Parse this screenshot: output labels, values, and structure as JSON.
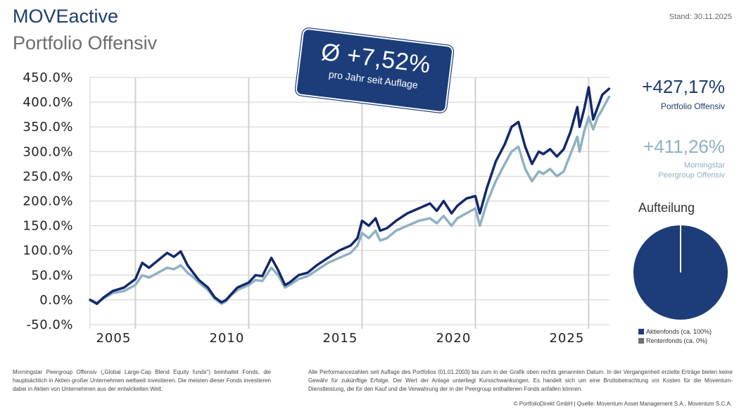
{
  "header": {
    "title": "MOVEactive",
    "subtitle": "Portfolio Offensiv",
    "stand": "Stand: 30.11.2025"
  },
  "badge": {
    "value": "Ø +7,52%",
    "caption": "pro Jahr seit Auflage"
  },
  "performance": {
    "portfolio_value": "+427,17%",
    "portfolio_label": "Portfolio Offensiv",
    "peer_value": "+411,26%",
    "peer_label_line1": "Morningstar",
    "peer_label_line2": "Peergroup Offensiv"
  },
  "allocation": {
    "title": "Aufteilung",
    "items": [
      {
        "label": "Aktienfonds (ca. 100%)",
        "value": 100,
        "color": "#1c3d7a"
      },
      {
        "label": "Rentenfonds (ca. 0%)",
        "value": 0,
        "color": "#707070"
      }
    ]
  },
  "footer": {
    "left": "Morningstar Peergroup Offensiv („Global Large-Cap Blend Equity funds\") beinhaltet Fonds, die hauptsächlich in Aktien großer Unternehmen weltweit investieren. Die meisten dieser Fonds investieren dabei in Aktien von Unternehmen aus der entwickelten Welt.",
    "right": "Alle Performancezahlen seit Auflage des Portfolios (01.01.2003) bis zum in der Grafik oben rechts genannten Datum. In der Vergangenheit erzielte Erträge bieten keine Gewähr für zukünftige Erfolge. Der Wert der Anlage unterliegt Kursschwankungen. Es handelt sich um eine Bruttobetrachtung vor Kosten für die Moventum-Dienstleistung, die für den Kauf und die Verwahrung der in der Peergroup enthaltenen Fonds anfallen können.",
    "copyright": "© PortfolioDirekt GmbH | Quelle: Moventum Asset Management S.A., Moventum S.C.A."
  },
  "colors": {
    "portfolio": "#13286b",
    "peer": "#8fb1c3",
    "grid": "#d0d0d0"
  },
  "chart_data": {
    "type": "line",
    "title": "",
    "xlabel": "",
    "ylabel": "",
    "ylim": [
      -50,
      450
    ],
    "xlim": [
      2003.0,
      2025.92
    ],
    "y_ticks": [
      -50,
      0,
      50,
      100,
      150,
      200,
      250,
      300,
      350,
      400,
      450
    ],
    "y_tick_labels": [
      "-50.0%",
      "0.0%",
      "50.0%",
      "100.0%",
      "150.0%",
      "200.0%",
      "250.0%",
      "300.0%",
      "350.0%",
      "400.0%",
      "450.0%"
    ],
    "x_ticks": [
      2005,
      2010,
      2015,
      2020,
      2025
    ],
    "x_tick_labels": [
      "2005",
      "2010",
      "2015",
      "2020",
      "2025"
    ],
    "series": [
      {
        "name": "Portfolio Offensiv",
        "x": [
          2003.0,
          2003.3,
          2003.6,
          2004.0,
          2004.5,
          2005.0,
          2005.3,
          2005.6,
          2006.0,
          2006.4,
          2006.7,
          2007.0,
          2007.3,
          2007.5,
          2007.8,
          2008.2,
          2008.5,
          2008.8,
          2009.0,
          2009.2,
          2009.5,
          2010.0,
          2010.3,
          2010.6,
          2011.0,
          2011.3,
          2011.6,
          2011.8,
          2012.2,
          2012.6,
          2013.0,
          2013.5,
          2014.0,
          2014.5,
          2014.8,
          2015.0,
          2015.3,
          2015.6,
          2015.8,
          2016.1,
          2016.5,
          2017.0,
          2017.5,
          2018.0,
          2018.3,
          2018.6,
          2018.95,
          2019.2,
          2019.6,
          2020.0,
          2020.2,
          2020.5,
          2020.9,
          2021.3,
          2021.6,
          2021.9,
          2022.2,
          2022.5,
          2022.8,
          2023.0,
          2023.3,
          2023.6,
          2023.9,
          2024.2,
          2024.5,
          2024.6,
          2024.8,
          2025.0,
          2025.2,
          2025.4,
          2025.6,
          2025.9
        ],
        "values": [
          0,
          -8,
          5,
          18,
          25,
          42,
          75,
          65,
          80,
          95,
          87,
          98,
          70,
          58,
          40,
          25,
          5,
          -5,
          0,
          10,
          25,
          35,
          50,
          48,
          85,
          60,
          30,
          35,
          50,
          55,
          70,
          85,
          100,
          110,
          125,
          160,
          150,
          165,
          140,
          145,
          160,
          175,
          185,
          195,
          180,
          200,
          175,
          190,
          205,
          210,
          175,
          225,
          280,
          315,
          350,
          360,
          310,
          275,
          300,
          295,
          305,
          290,
          305,
          340,
          390,
          350,
          385,
          430,
          365,
          390,
          415,
          427
        ]
      },
      {
        "name": "Morningstar Peergroup Offensiv",
        "x": [
          2003.0,
          2003.3,
          2003.6,
          2004.0,
          2004.5,
          2005.0,
          2005.3,
          2005.6,
          2006.0,
          2006.4,
          2006.7,
          2007.0,
          2007.3,
          2007.5,
          2007.8,
          2008.2,
          2008.5,
          2008.8,
          2009.0,
          2009.2,
          2009.5,
          2010.0,
          2010.3,
          2010.6,
          2011.0,
          2011.3,
          2011.6,
          2011.8,
          2012.2,
          2012.6,
          2013.0,
          2013.5,
          2014.0,
          2014.5,
          2014.8,
          2015.0,
          2015.3,
          2015.6,
          2015.8,
          2016.1,
          2016.5,
          2017.0,
          2017.5,
          2018.0,
          2018.3,
          2018.6,
          2018.95,
          2019.2,
          2019.6,
          2020.0,
          2020.2,
          2020.5,
          2020.9,
          2021.3,
          2021.6,
          2021.9,
          2022.2,
          2022.5,
          2022.8,
          2023.0,
          2023.3,
          2023.6,
          2023.9,
          2024.2,
          2024.5,
          2024.6,
          2024.8,
          2025.0,
          2025.2,
          2025.4,
          2025.6,
          2025.9
        ],
        "values": [
          0,
          -6,
          3,
          14,
          18,
          30,
          50,
          45,
          55,
          65,
          62,
          70,
          55,
          48,
          35,
          20,
          2,
          -8,
          -3,
          8,
          20,
          30,
          40,
          38,
          65,
          50,
          25,
          30,
          42,
          48,
          60,
          75,
          85,
          95,
          110,
          135,
          125,
          140,
          120,
          125,
          140,
          150,
          160,
          165,
          155,
          170,
          150,
          165,
          175,
          185,
          150,
          195,
          240,
          275,
          300,
          310,
          265,
          240,
          260,
          255,
          265,
          250,
          260,
          295,
          330,
          300,
          340,
          370,
          345,
          370,
          385,
          411
        ]
      }
    ]
  }
}
